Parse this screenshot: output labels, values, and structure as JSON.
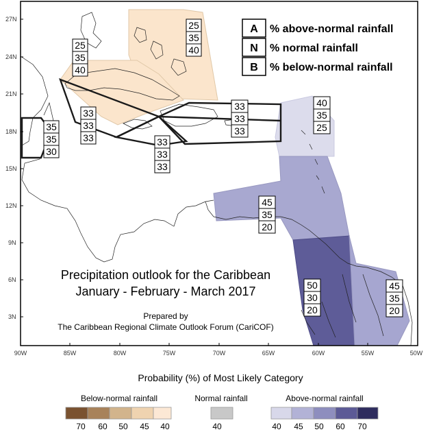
{
  "map": {
    "title_line1": "Precipitation outlook for the Caribbean",
    "title_line2": "January - February - March 2017",
    "prepared_by": "Prepared by",
    "organization": "The Caribbean Regional Climate Outlook Forum (CariCOF)"
  },
  "legend_key": [
    {
      "letter": "A",
      "text": "% above-normal rainfall"
    },
    {
      "letter": "N",
      "text": "% normal rainfall"
    },
    {
      "letter": "B",
      "text": "% below-normal rainfall"
    }
  ],
  "lat_ticks": [
    "27N",
    "24N",
    "21N",
    "18N",
    "15N",
    "12N",
    "9N",
    "6N",
    "3N"
  ],
  "lon_ticks": [
    "90W",
    "85W",
    "80W",
    "75W",
    "70W",
    "65W",
    "60W",
    "55W",
    "50W"
  ],
  "regions": [
    {
      "name": "bahamas",
      "above": "25",
      "normal": "35",
      "below": "40",
      "category": "below",
      "probability": 40
    },
    {
      "name": "cuba",
      "above": "25",
      "normal": "35",
      "below": "40",
      "category": "below",
      "probability": 40
    },
    {
      "name": "belize",
      "above": "35",
      "normal": "35",
      "below": "30",
      "category": "none"
    },
    {
      "name": "western-caribbean",
      "above": "33",
      "normal": "33",
      "below": "33",
      "category": "none"
    },
    {
      "name": "jamaica",
      "above": "33",
      "normal": "33",
      "below": "33",
      "category": "none"
    },
    {
      "name": "hispaniola-puerto-rico",
      "above": "33",
      "normal": "33",
      "below": "33",
      "category": "none"
    },
    {
      "name": "leeward-islands",
      "above": "40",
      "normal": "35",
      "below": "25",
      "category": "above",
      "probability": 40
    },
    {
      "name": "southern-caribbean",
      "above": "45",
      "normal": "35",
      "below": "20",
      "category": "above",
      "probability": 45
    },
    {
      "name": "guyana",
      "above": "50",
      "normal": "30",
      "below": "20",
      "category": "above",
      "probability": 50
    },
    {
      "name": "suriname-french-guiana",
      "above": "45",
      "normal": "35",
      "below": "20",
      "category": "above",
      "probability": 45
    }
  ],
  "colorbar": {
    "title": "Probability (%) of Most Likely Category",
    "below": {
      "label": "Below-normal rainfall",
      "ticks": [
        "70",
        "60",
        "50",
        "45",
        "40"
      ],
      "colors": [
        "#7a5230",
        "#a8825a",
        "#d2b48c",
        "#efd3b0",
        "#fce8d5"
      ]
    },
    "normal": {
      "label": "Normal rainfall",
      "ticks": [
        "40"
      ],
      "colors": [
        "#c8c8c8"
      ]
    },
    "above": {
      "label": "Above-normal rainfall",
      "ticks": [
        "40",
        "45",
        "50",
        "60",
        "70"
      ],
      "colors": [
        "#d8d8ea",
        "#b2b2d6",
        "#8e8ebe",
        "#5c5a96",
        "#2e2c5e"
      ]
    }
  }
}
